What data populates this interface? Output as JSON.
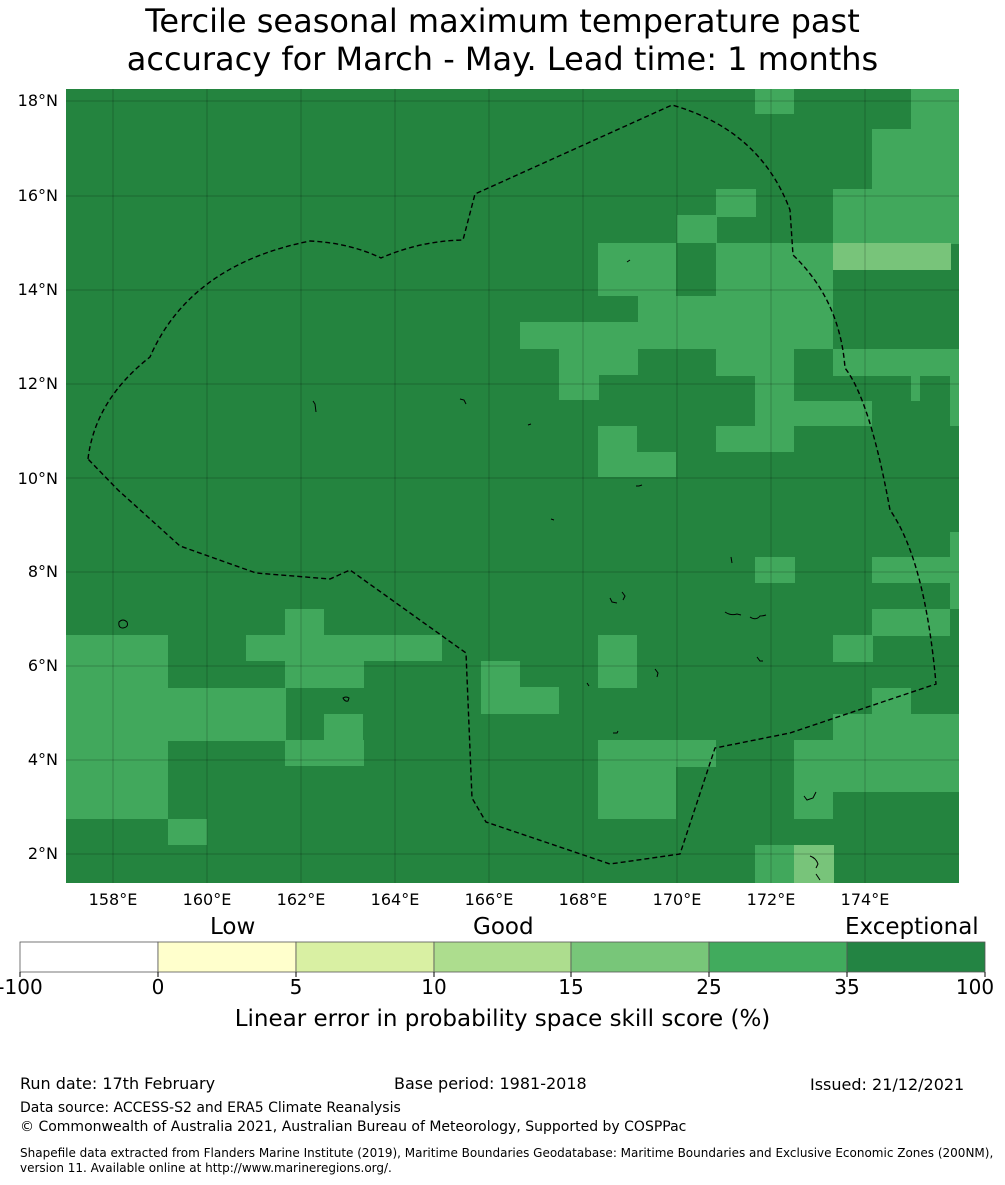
{
  "title": {
    "line1": "Tercile seasonal maximum temperature past",
    "line2": "accuracy for March - May. Lead time: 1 months"
  },
  "map": {
    "lat_labels": [
      "18°N",
      "16°N",
      "14°N",
      "12°N",
      "10°N",
      "8°N",
      "6°N",
      "4°N",
      "2°N"
    ],
    "lon_labels": [
      "158°E",
      "160°E",
      "162°E",
      "164°E",
      "166°E",
      "168°E",
      "170°E",
      "172°E",
      "174°E"
    ],
    "background_color": "#24843f",
    "category_colors": {
      "exceptional": "#24843f",
      "good_25_35": "#41a85c",
      "good_15_25": "#78c47a"
    },
    "boundary_style": "dashed black line (EEZ)"
  },
  "colorbar": {
    "categories": [
      "Low",
      "Good",
      "Exceptional"
    ],
    "ticks": [
      "-100",
      "0",
      "5",
      "10",
      "15",
      "25",
      "35",
      "100"
    ],
    "colors": [
      "#ffffff",
      "#ffffcc",
      "#d9f0a3",
      "#addd8e",
      "#78c679",
      "#41ab5d",
      "#238443"
    ],
    "label": "Linear error in probability space skill score (%)"
  },
  "footer": {
    "run_date": "Run date: 17th February",
    "base_period": "Base period: 1981-2018",
    "issued": "Issued: 21/12/2021",
    "data_source": "Data source: ACCESS-S2 and ERA5 Climate Reanalysis",
    "copyright": "© Commonwealth of Australia 2021, Australian Bureau of Meteorology, Supported by COSPPac",
    "shapefile": "Shapefile data extracted from Flanders Marine Institute (2019), Maritime Boundaries Geodatabase: Maritime Boundaries and Exclusive Economic Zones (200NM), version 11. Available online at http://www.marineregions.org/."
  }
}
